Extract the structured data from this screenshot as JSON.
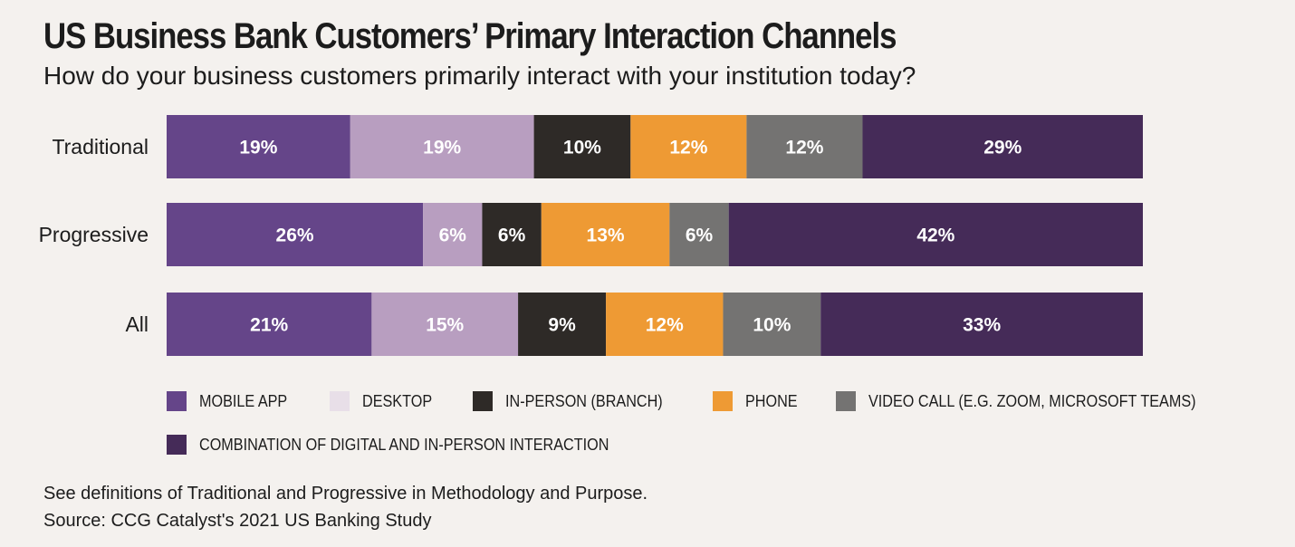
{
  "chart_data": {
    "type": "bar",
    "orientation": "horizontal",
    "stacked": true,
    "title": "US Business Bank Customers’ Primary Interaction Channels",
    "subtitle": "How do your business customers primarily interact with your institution today?",
    "categories": [
      "Traditional",
      "Progressive",
      "All"
    ],
    "series": [
      {
        "name": "MOBILE APP",
        "color": "#654589",
        "label_color": "#ffffff",
        "values": [
          19,
          26,
          21
        ],
        "labels": [
          "19%",
          "26%",
          "21%"
        ]
      },
      {
        "name": "DESKTOP",
        "color": "#b89ec0",
        "label_color": "#ffffff",
        "values": [
          19,
          6,
          15
        ],
        "labels": [
          "19%",
          "6%",
          "15%"
        ]
      },
      {
        "name": "IN-PERSON (BRANCH)",
        "color": "#2e2a27",
        "label_color": "#ffffff",
        "values": [
          10,
          6,
          9
        ],
        "labels": [
          "10%",
          "6%",
          "9%"
        ]
      },
      {
        "name": "PHONE",
        "color": "#ee9a34",
        "label_color": "#ffffff",
        "values": [
          12,
          13,
          12
        ],
        "labels": [
          "12%",
          "13%",
          "12%"
        ]
      },
      {
        "name": "VIDEO CALL (E.G. ZOOM, MICROSOFT TEAMS)",
        "color": "#747372",
        "label_color": "#ffffff",
        "values": [
          12,
          6,
          10
        ],
        "labels": [
          "12%",
          "6%",
          "10%"
        ]
      },
      {
        "name": "COMBINATION OF DIGITAL AND IN-PERSON INTERACTION",
        "color": "#452b58",
        "label_color": "#ffffff",
        "values": [
          29,
          42,
          33
        ],
        "labels": [
          "29%",
          "42%",
          "33%"
        ]
      }
    ],
    "legend_swatch_colors": [
      "#654589",
      "#e8dfe8",
      "#2e2a27",
      "#ee9a34",
      "#747372",
      "#452b58"
    ],
    "xlim": [
      0,
      100
    ],
    "legend_position": "bottom"
  },
  "footnote": {
    "line1": "See definitions of Traditional and Progressive in Methodology and Purpose.",
    "line2": "Source: CCG Catalyst's 2021 US Banking Study"
  }
}
